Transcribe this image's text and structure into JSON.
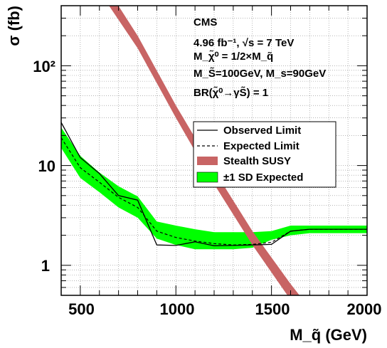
{
  "chart_data": {
    "type": "line",
    "xlabel": "M_q̃ (GeV)",
    "ylabel": "σ (fb)",
    "xlim": [
      400,
      2000
    ],
    "ylim": [
      0.5,
      400
    ],
    "y_scale": "log",
    "grid": true,
    "x_ticks": [
      "500",
      "1000",
      "1500",
      "2000"
    ],
    "y_ticks": [
      "1",
      "10",
      "10²"
    ],
    "annotations": [
      "CMS",
      "4.96 fb⁻¹, √s = 7 TeV",
      "M_χ̃⁰ = 1/2×M_q̃",
      "M_S̃=100GeV, M_s=90GeV",
      "BR(χ̃⁰→γS̃) = 1"
    ],
    "legend_position": "right-middle",
    "series": [
      {
        "name": "Observed Limit",
        "style": "solid",
        "color": "#000000",
        "x": [
          400,
          500,
          600,
          700,
          800,
          900,
          1000,
          1050,
          1100,
          1200,
          1300,
          1400,
          1500,
          1600,
          1700,
          1800,
          1900,
          2000
        ],
        "y": [
          27,
          12,
          8.3,
          5.0,
          4.5,
          1.6,
          1.58,
          1.65,
          1.72,
          1.57,
          1.58,
          1.6,
          1.62,
          2.2,
          2.3,
          2.3,
          2.3,
          2.3
        ]
      },
      {
        "name": "Expected Limit",
        "style": "dashed",
        "color": "#000000",
        "x": [
          400,
          500,
          600,
          700,
          800,
          900,
          1000,
          1100,
          1200,
          1300,
          1400,
          1500,
          1600,
          1700,
          1800,
          1900,
          2000
        ],
        "y": [
          19,
          9.5,
          6.8,
          4.8,
          3.8,
          2.2,
          1.9,
          1.75,
          1.65,
          1.6,
          1.62,
          1.7,
          2.2,
          2.3,
          2.3,
          2.3,
          2.3
        ]
      },
      {
        "name": "±1 SD Expected",
        "style": "band",
        "color": "#00ff00",
        "x": [
          400,
          500,
          600,
          700,
          800,
          900,
          1000,
          1100,
          1200,
          1300,
          1400,
          1500,
          1600,
          1700,
          1800,
          1900,
          2000
        ],
        "y_low": [
          15,
          7.5,
          5.4,
          3.8,
          3.0,
          1.85,
          1.6,
          1.45,
          1.45,
          1.45,
          1.5,
          1.8,
          2.0,
          2.1,
          2.1,
          2.1,
          2.1
        ],
        "y_high": [
          24,
          12.5,
          8.5,
          6.2,
          4.9,
          2.75,
          2.5,
          2.3,
          2.15,
          2.15,
          2.15,
          2.2,
          2.5,
          2.5,
          2.5,
          2.5,
          2.5
        ]
      },
      {
        "name": "Stealth SUSY",
        "style": "band",
        "color": "#c86464",
        "x": [
          650,
          800,
          1000,
          1200,
          1400,
          1600,
          1800
        ],
        "y_low": [
          400,
          150,
          30,
          6.5,
          1.6,
          0.45,
          0.15
        ],
        "y_high": [
          560,
          200,
          40,
          9.0,
          2.2,
          0.65,
          0.21
        ]
      }
    ]
  }
}
